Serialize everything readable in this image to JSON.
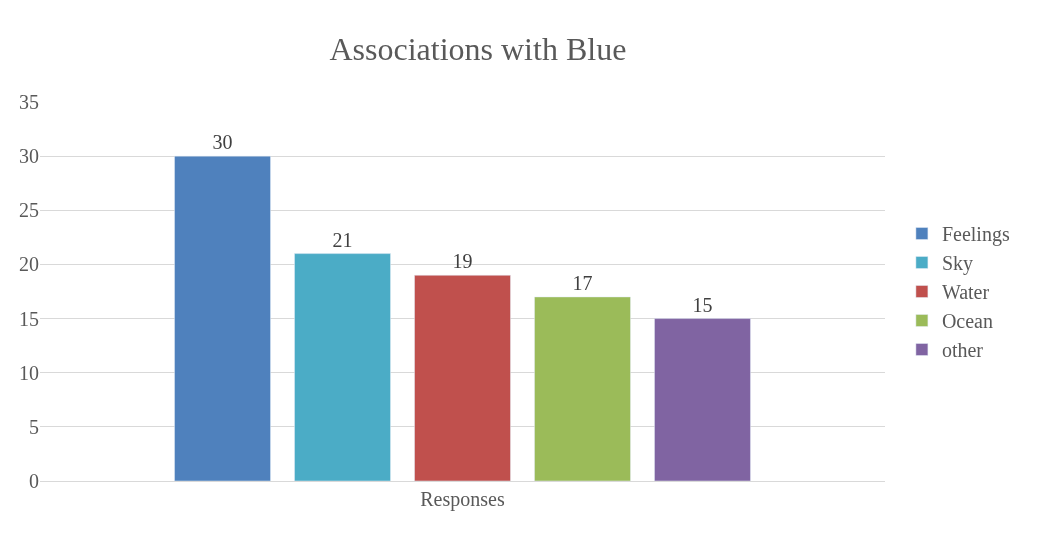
{
  "chart_data": {
    "type": "bar",
    "title": "Associations with Blue",
    "categories": [
      "Responses"
    ],
    "series": [
      {
        "name": "Feelings",
        "color": "#4f81bd",
        "values": [
          30
        ]
      },
      {
        "name": "Sky",
        "color": "#4bacc6",
        "values": [
          21
        ]
      },
      {
        "name": "Water",
        "color": "#c0504d",
        "values": [
          19
        ]
      },
      {
        "name": "Ocean",
        "color": "#9bbb59",
        "values": [
          17
        ]
      },
      {
        "name": "other",
        "color": "#8064a2",
        "values": [
          15
        ]
      }
    ],
    "ylim": [
      0,
      35
    ],
    "yticks": [
      0,
      5,
      10,
      15,
      20,
      25,
      30,
      35
    ],
    "grid": "y",
    "legend": "right",
    "data_labels": true
  }
}
